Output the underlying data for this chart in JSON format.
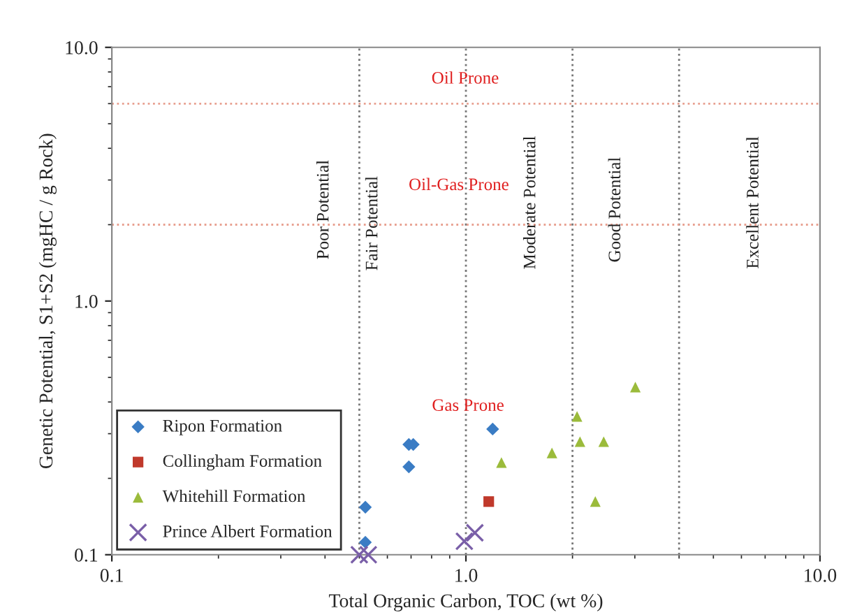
{
  "chart_data": {
    "type": "scatter",
    "xlabel": "Total Organic Carbon, TOC (wt %)",
    "ylabel": "Genetic Potential, S1+S2 (mgHC / g Rock)",
    "log": "xy",
    "xlim": [
      0.1,
      10
    ],
    "ylim": [
      0.1,
      10
    ],
    "xticks": [
      {
        "value": 0.1,
        "label": "0.1"
      },
      {
        "value": 1,
        "label": "1.0"
      },
      {
        "value": 10,
        "label": "10.0"
      }
    ],
    "yticks": [
      {
        "value": 0.1,
        "label": "0.1"
      },
      {
        "value": 1,
        "label": "1.0"
      },
      {
        "value": 10,
        "label": "10.0"
      }
    ],
    "grid": false,
    "legend": "bottom left",
    "series": [
      {
        "name": "Ripon Formation",
        "color": "#3a7cc4",
        "marker": "diamond",
        "x": [
          0.52,
          0.52,
          0.69,
          0.71,
          0.69,
          1.19
        ],
        "values": [
          0.154,
          0.112,
          0.272,
          0.272,
          0.222,
          0.313
        ]
      },
      {
        "name": "Collingham Formation",
        "color": "#c0392b",
        "marker": "square",
        "x": [
          1.16
        ],
        "values": [
          0.162
        ]
      },
      {
        "name": "Whitehill Formation",
        "color": "#9bbb3b",
        "marker": "triangle",
        "x": [
          3.01,
          2.06,
          2.1,
          2.45,
          1.75,
          1.26,
          2.32
        ],
        "values": [
          0.458,
          0.351,
          0.279,
          0.279,
          0.252,
          0.231,
          0.162
        ]
      },
      {
        "name": "Prince Albert Formation",
        "color": "#7a5fa8",
        "marker": "cross",
        "x": [
          0.5,
          0.53,
          0.99,
          1.06
        ],
        "values": [
          0.1,
          0.1,
          0.113,
          0.122
        ]
      }
    ],
    "ref_lines": [
      {
        "axis": "x",
        "value": 0.5,
        "color": "#777777",
        "line_style": "dotted"
      },
      {
        "axis": "x",
        "value": 1,
        "color": "#777777",
        "line_style": "dotted"
      },
      {
        "axis": "x",
        "value": 2,
        "color": "#777777",
        "line_style": "dotted"
      },
      {
        "axis": "x",
        "value": 4,
        "color": "#777777",
        "line_style": "dotted"
      },
      {
        "axis": "y",
        "value": 2,
        "color": "#e8a090",
        "line_style": "dotted"
      },
      {
        "axis": "y",
        "value": 6,
        "color": "#e8a090",
        "line_style": "dotted"
      }
    ],
    "annotations": [
      "Oil Prone",
      "Oil-Gas Prone",
      "Gas Prone",
      "Poor Potential",
      "Fair Potential",
      "Moderate Potential",
      "Good Potential",
      "Excellent Potential"
    ]
  }
}
